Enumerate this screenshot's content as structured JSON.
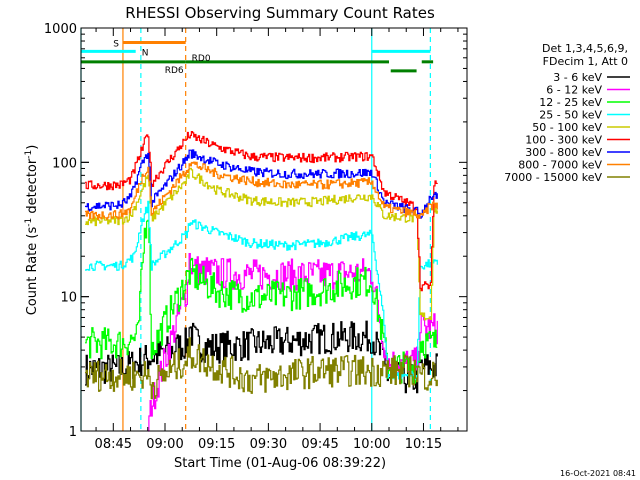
{
  "chart_data": {
    "type": "line",
    "title": "RHESSI Observing Summary Count Rates",
    "xlabel": "Start Time (01-Aug-06 08:39:22)",
    "ylabel_main": "Count Rate (s",
    "ylabel_sup1": "-1",
    "ylabel_mid": " detector",
    "ylabel_sup2": "-1",
    "ylabel_end": ")",
    "y_scale": "log",
    "ylim": [
      1,
      1000
    ],
    "xlim_minutes": [
      -9.37,
      102.63
    ],
    "y_ticks": [
      {
        "value": 1,
        "label": "1"
      },
      {
        "value": 10,
        "label": "10"
      },
      {
        "value": 100,
        "label": "100"
      },
      {
        "value": 1000,
        "label": "1000"
      }
    ],
    "x_ticks": [
      {
        "minutes": 0,
        "label": "08:45"
      },
      {
        "minutes": 15,
        "label": "09:00"
      },
      {
        "minutes": 30,
        "label": "09:15"
      },
      {
        "minutes": 45,
        "label": "09:30"
      },
      {
        "minutes": 60,
        "label": "09:45"
      },
      {
        "minutes": 75,
        "label": "10:00"
      },
      {
        "minutes": 90,
        "label": "10:15"
      }
    ],
    "legend": {
      "header1": "Det 1,3,4,5,6,9,",
      "header2": "FDecim 1, Att 0",
      "position": "top-right"
    },
    "series": [
      {
        "name": "3 - 6 keV",
        "color": "#000000",
        "points": [
          [
            -8.2,
            2.9
          ],
          [
            2,
            2.9
          ],
          [
            21.5,
            4.5
          ],
          [
            22,
            6
          ],
          [
            23,
            5
          ],
          [
            25,
            4.3
          ],
          [
            30,
            4.2
          ],
          [
            40,
            4.4
          ],
          [
            50,
            4.6
          ],
          [
            60,
            4.9
          ],
          [
            70,
            5.0
          ],
          [
            75,
            5.0
          ],
          [
            78.5,
            3.3
          ],
          [
            79.5,
            2.5
          ],
          [
            88,
            2.4
          ],
          [
            89,
            3.0
          ],
          [
            92,
            3.0
          ],
          [
            94,
            3.0
          ]
        ]
      },
      {
        "name": "6 - 12 keV",
        "color": "#ff00ff",
        "points": [
          [
            10,
            1.0
          ],
          [
            11,
            1.6
          ],
          [
            21.5,
            12
          ],
          [
            22,
            20
          ],
          [
            23,
            16
          ],
          [
            30,
            15
          ],
          [
            40,
            14.5
          ],
          [
            50,
            14.5
          ],
          [
            60,
            14.5
          ],
          [
            70,
            15
          ],
          [
            75,
            15
          ],
          [
            78.5,
            4.5
          ],
          [
            79.5,
            3.2
          ],
          [
            88,
            3.2
          ],
          [
            89,
            6.0
          ],
          [
            92,
            5.8
          ],
          [
            94,
            5.8
          ]
        ]
      },
      {
        "name": "12 - 25 keV",
        "color": "#00ff00",
        "points": [
          [
            -8.2,
            4.5
          ],
          [
            2,
            4.5
          ],
          [
            7,
            5.0
          ],
          [
            9,
            30
          ],
          [
            10,
            48
          ],
          [
            11,
            4.0
          ],
          [
            21.5,
            14
          ],
          [
            22,
            15
          ],
          [
            30,
            11
          ],
          [
            40,
            9.8
          ],
          [
            50,
            10.2
          ],
          [
            60,
            11.2
          ],
          [
            70,
            12.8
          ],
          [
            75,
            13.0
          ],
          [
            78.5,
            4.4
          ],
          [
            79.5,
            3.0
          ],
          [
            88,
            3.0
          ],
          [
            89,
            4.6
          ],
          [
            92,
            4.5
          ],
          [
            94,
            4.5
          ]
        ]
      },
      {
        "name": "25 - 50 keV",
        "color": "#00ffff",
        "points": [
          [
            -8.2,
            17
          ],
          [
            2,
            17
          ],
          [
            6,
            20
          ],
          [
            8,
            35
          ],
          [
            10,
            48
          ],
          [
            11,
            17
          ],
          [
            21.5,
            30
          ],
          [
            22,
            36
          ],
          [
            30,
            30
          ],
          [
            40,
            25
          ],
          [
            50,
            24
          ],
          [
            60,
            25
          ],
          [
            70,
            28
          ],
          [
            75,
            29
          ],
          [
            78.5,
            6.5
          ],
          [
            79.5,
            2.6
          ],
          [
            88,
            2.6
          ],
          [
            89,
            17
          ],
          [
            92,
            17.5
          ],
          [
            94,
            17.5
          ]
        ]
      },
      {
        "name": "50 - 100 keV",
        "color": "#cccc00",
        "points": [
          [
            -8.2,
            36
          ],
          [
            2,
            37
          ],
          [
            5,
            40
          ],
          [
            8,
            60
          ],
          [
            10,
            80
          ],
          [
            11,
            38
          ],
          [
            21.5,
            75
          ],
          [
            22,
            85
          ],
          [
            30,
            62
          ],
          [
            40,
            52
          ],
          [
            50,
            50
          ],
          [
            60,
            51
          ],
          [
            70,
            55
          ],
          [
            75,
            56
          ],
          [
            78.5,
            40
          ],
          [
            88,
            38
          ],
          [
            89,
            7.2
          ],
          [
            92,
            7.0
          ],
          [
            93,
            45
          ],
          [
            94,
            44
          ]
        ]
      },
      {
        "name": "100 - 300 keV",
        "color": "#ff0000",
        "points": [
          [
            -8.2,
            67
          ],
          [
            2,
            68
          ],
          [
            5,
            75
          ],
          [
            8,
            120
          ],
          [
            10,
            165
          ],
          [
            11,
            70
          ],
          [
            21.5,
            155
          ],
          [
            22,
            160
          ],
          [
            30,
            130
          ],
          [
            40,
            110
          ],
          [
            50,
            108
          ],
          [
            60,
            108
          ],
          [
            70,
            110
          ],
          [
            75,
            111
          ],
          [
            78.5,
            60
          ],
          [
            88,
            46
          ],
          [
            89,
            12
          ],
          [
            92,
            12
          ],
          [
            93,
            72
          ],
          [
            94,
            70
          ]
        ]
      },
      {
        "name": "300 - 800 keV",
        "color": "#0000ff",
        "points": [
          [
            -8.2,
            47
          ],
          [
            2,
            48
          ],
          [
            5,
            55
          ],
          [
            8,
            95
          ],
          [
            10,
            120
          ],
          [
            11,
            50
          ],
          [
            21.5,
            110
          ],
          [
            22,
            118
          ],
          [
            30,
            98
          ],
          [
            40,
            85
          ],
          [
            50,
            82
          ],
          [
            60,
            82
          ],
          [
            70,
            83
          ],
          [
            75,
            84
          ],
          [
            78.5,
            50
          ],
          [
            88,
            43
          ],
          [
            89,
            40
          ],
          [
            92,
            56
          ],
          [
            94,
            55
          ]
        ]
      },
      {
        "name": "800 - 7000 keV",
        "color": "#ff8000",
        "points": [
          [
            -8.2,
            40
          ],
          [
            2,
            41
          ],
          [
            5,
            45
          ],
          [
            8,
            75
          ],
          [
            10,
            95
          ],
          [
            11,
            42
          ],
          [
            21.5,
            90
          ],
          [
            22,
            100
          ],
          [
            30,
            82
          ],
          [
            40,
            72
          ],
          [
            50,
            68
          ],
          [
            60,
            68
          ],
          [
            70,
            70
          ],
          [
            75,
            71
          ],
          [
            78.5,
            46
          ],
          [
            88,
            41
          ],
          [
            89,
            38
          ],
          [
            92,
            48
          ],
          [
            94,
            47
          ]
        ]
      },
      {
        "name": "7000 - 15000 keV",
        "color": "#808000",
        "points": [
          [
            -8.2,
            2.6
          ],
          [
            2,
            2.6
          ],
          [
            10,
            2.6
          ],
          [
            11,
            2.2
          ],
          [
            21.5,
            3.5
          ],
          [
            22,
            3.8
          ],
          [
            30,
            3.0
          ],
          [
            40,
            2.4
          ],
          [
            50,
            2.6
          ],
          [
            60,
            2.8
          ],
          [
            70,
            2.8
          ],
          [
            75,
            2.8
          ],
          [
            78.5,
            2.8
          ],
          [
            88,
            2.8
          ],
          [
            89,
            2.6
          ],
          [
            92,
            2.6
          ],
          [
            94,
            2.6
          ]
        ]
      }
    ],
    "v_lines": [
      {
        "minutes": -9.37,
        "color": "#00ffff",
        "dashed": false
      },
      {
        "minutes": 2.8,
        "color": "#ff8000",
        "dashed": false
      },
      {
        "minutes": 8.0,
        "color": "#00ffff",
        "dashed": true
      },
      {
        "minutes": 21.0,
        "color": "#ff8000",
        "dashed": true
      },
      {
        "minutes": 75.0,
        "color": "#00ffff",
        "dashed": false
      },
      {
        "minutes": 92.0,
        "color": "#00ffff",
        "dashed": true
      }
    ],
    "flag_bars": [
      {
        "label": "S",
        "color": "#ff8000",
        "y_value": 780,
        "x_start": 2.8,
        "x_end": 21.0,
        "label_side": "left"
      },
      {
        "label": "N",
        "color": "#00ffff",
        "y_value": 670,
        "x_start": -9.37,
        "x_end": 6.5,
        "label_side": "right"
      },
      {
        "label": "",
        "color": "#00ffff",
        "y_value": 670,
        "x_start": 75.0,
        "x_end": 92.0,
        "label_side": "none"
      },
      {
        "label": "RD6",
        "color": "#008000",
        "y_value": 560,
        "x_start": -9.37,
        "x_end": 21.0,
        "label_side": "below-end"
      },
      {
        "label": "RD0",
        "color": "#008000",
        "y_value": 560,
        "x_start": 21.0,
        "x_end": 80.0,
        "label_side": "above-start"
      },
      {
        "label": "",
        "color": "#008000",
        "y_value": 480,
        "x_start": 80.5,
        "x_end": 88.0,
        "label_side": "none"
      },
      {
        "label": "",
        "color": "#008000",
        "y_value": 560,
        "x_start": 89.5,
        "x_end": 92.8,
        "label_side": "none"
      }
    ]
  },
  "footer": {
    "timestamp": "16-Oct-2021 08:41"
  }
}
